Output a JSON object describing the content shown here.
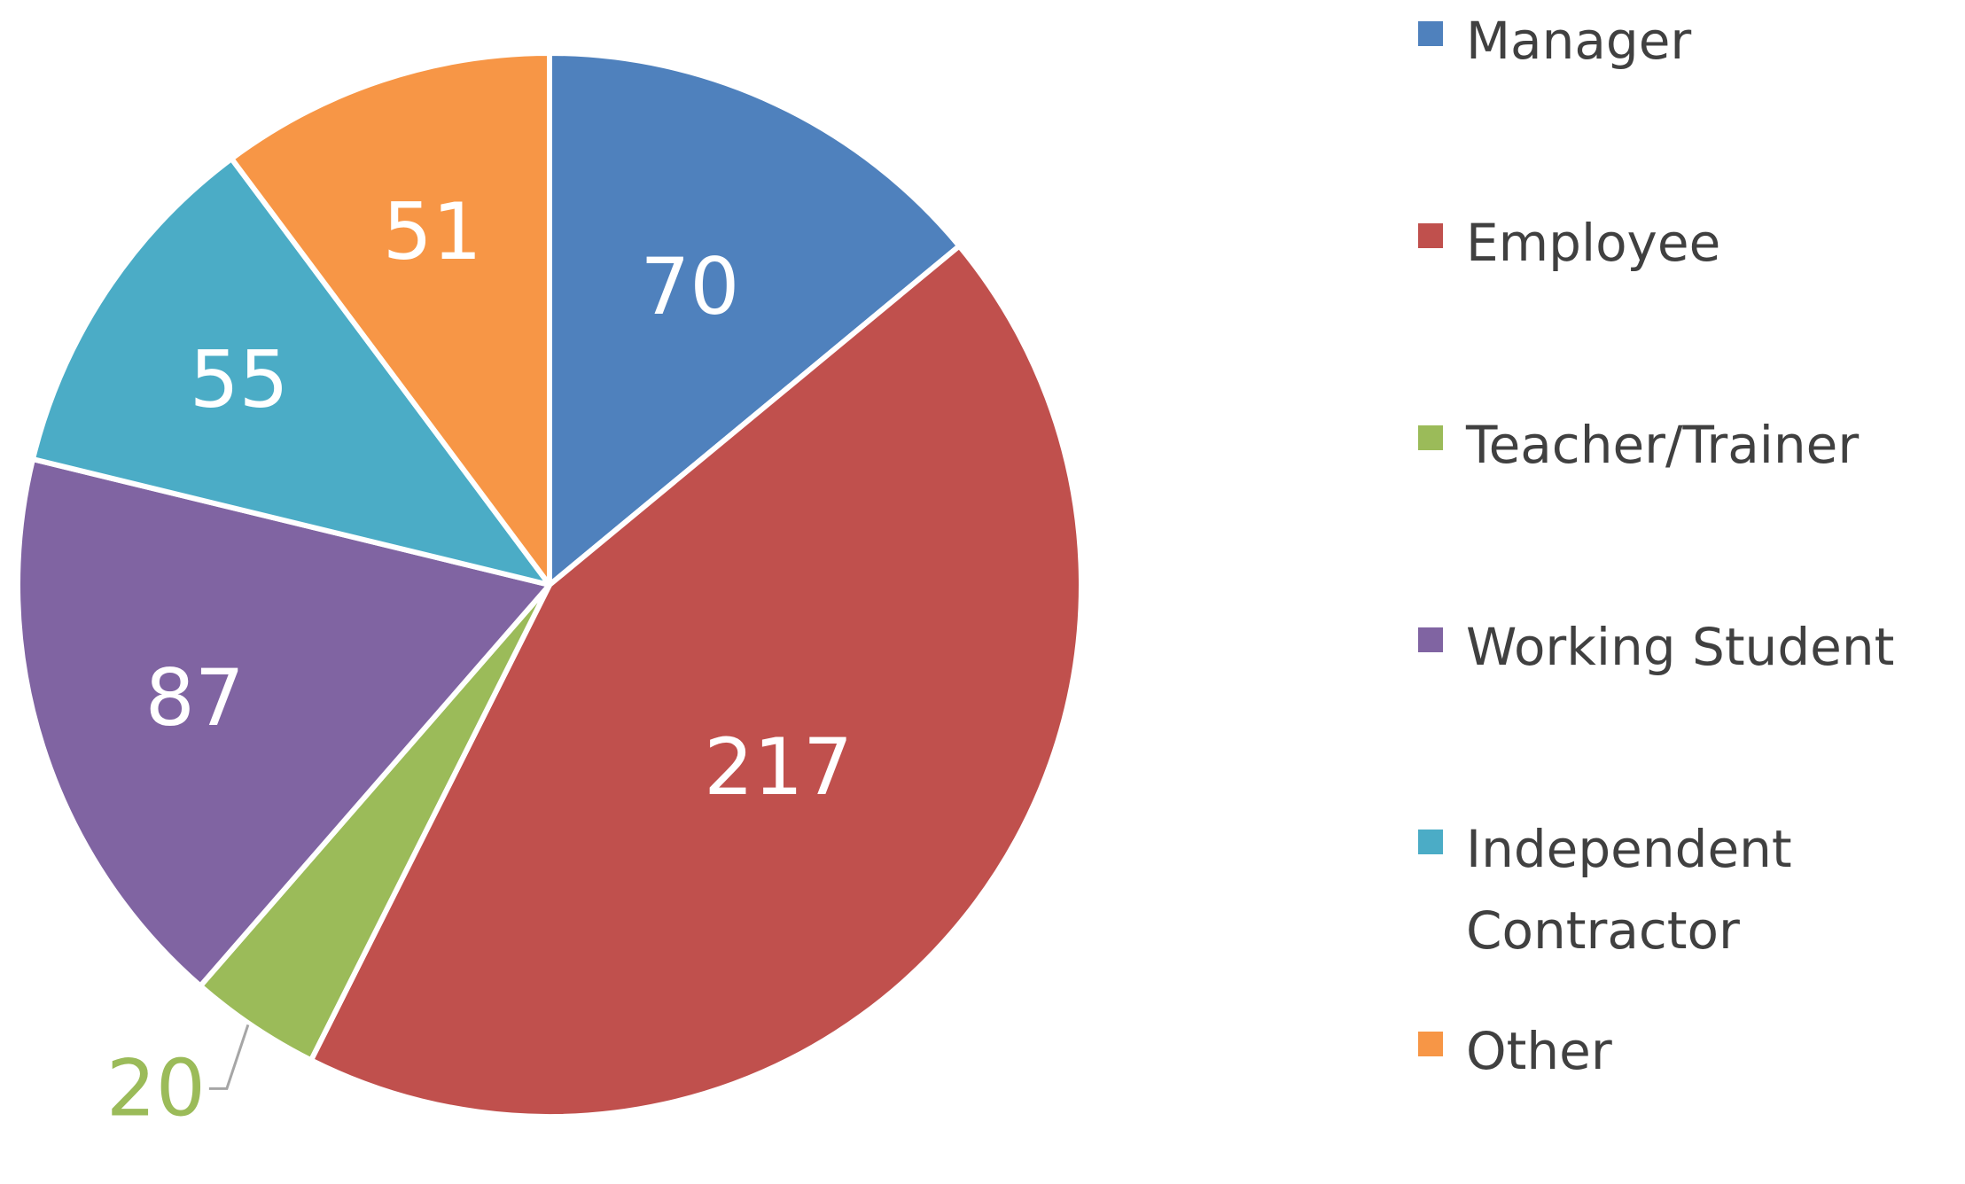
{
  "chart_data": {
    "type": "pie",
    "title": "",
    "categories": [
      "Manager",
      "Employee",
      "Teacher/Trainer",
      "Working Student",
      "Independent Contractor",
      "Other"
    ],
    "values": [
      70,
      217,
      20,
      87,
      55,
      51
    ],
    "labels": [
      "70",
      "217",
      "20",
      "87",
      "55",
      "51"
    ],
    "colors": [
      "#4F81BD",
      "#C0504D",
      "#9BBB59",
      "#8064A2",
      "#4BACC6",
      "#F79646"
    ],
    "label_colors": [
      "#ffffff",
      "#ffffff",
      "#9BBB59",
      "#ffffff",
      "#ffffff",
      "#ffffff"
    ],
    "start_angle_deg": 0,
    "direction": "clockwise",
    "legend_position": "right"
  }
}
